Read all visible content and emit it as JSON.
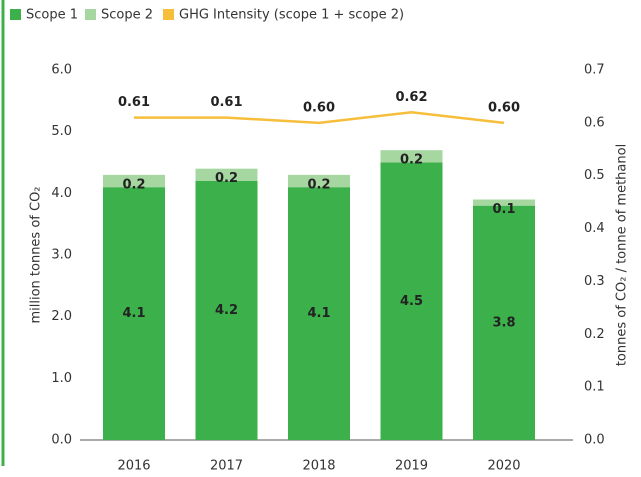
{
  "chart_data": {
    "type": "bar",
    "stacked": true,
    "categories": [
      "2016",
      "2017",
      "2018",
      "2019",
      "2020"
    ],
    "series": [
      {
        "name": "Scope 1",
        "color": "#3cb04a",
        "values": [
          4.1,
          4.2,
          4.1,
          4.5,
          3.8
        ]
      },
      {
        "name": "Scope 2",
        "color": "#a7d7a1",
        "values": [
          0.2,
          0.2,
          0.2,
          0.2,
          0.1
        ]
      },
      {
        "name": "GHG Intensity (scope 1 + scope 2)",
        "type": "line",
        "axis": "y2",
        "color": "#f6be3b",
        "values": [
          0.61,
          0.61,
          0.6,
          0.62,
          0.6
        ],
        "value_labels": [
          "0.61",
          "0.61",
          "0.60",
          "0.62",
          "0.60"
        ]
      }
    ],
    "ylabel": "million tonnes of CO₂",
    "y2label": "tonnes of CO₂ / tonne of methanol",
    "ylim": [
      0,
      6
    ],
    "yticks": [
      {
        "value": 0,
        "label": "0.0"
      },
      {
        "value": 1,
        "label": "1.0"
      },
      {
        "value": 2,
        "label": "2.0"
      },
      {
        "value": 3,
        "label": "3.0"
      },
      {
        "value": 4,
        "label": "4.0"
      },
      {
        "value": 5,
        "label": "5.0"
      },
      {
        "value": 6,
        "label": "6.0"
      }
    ],
    "y2lim": [
      0,
      0.7
    ],
    "y2ticks": [
      {
        "value": 0,
        "label": "0.0"
      },
      0.1,
      0.2,
      0.3,
      0.4,
      0.5,
      0.6,
      0.7
    ],
    "grid": false,
    "legend": "top-left"
  }
}
